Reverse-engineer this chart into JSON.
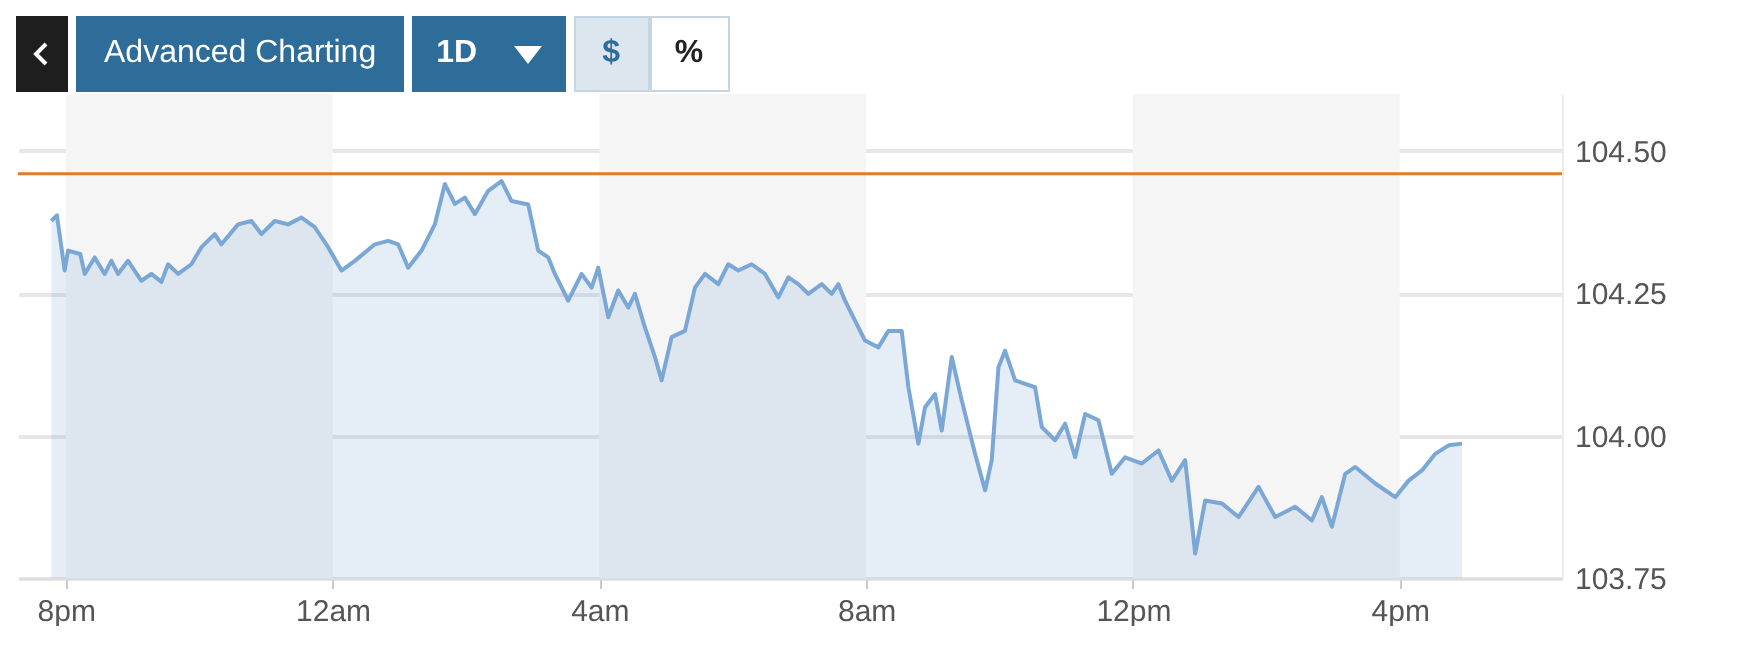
{
  "chart_data": {
    "type": "area",
    "annotations": [
      "Advanced Charting",
      "1D",
      "$",
      "%"
    ],
    "xlim": [
      "--01-01T19:17",
      "--01-02T18:26"
    ],
    "xticks": [
      {
        "value": "--01-01T20:00",
        "label": "8pm"
      },
      {
        "value": "--01-02T00:00",
        "label": "12am"
      },
      {
        "value": "--01-02T04:00",
        "label": "4am"
      },
      {
        "value": "--01-02T08:00",
        "label": "8am"
      },
      {
        "value": "--01-02T12:00",
        "label": "12pm"
      },
      {
        "value": "--01-02T16:00",
        "label": "4pm"
      }
    ],
    "ylim": [
      103.75,
      104.6
    ],
    "yticks": [
      {
        "value": 103.75,
        "label": "103.75"
      },
      {
        "value": 104,
        "label": "104.00"
      },
      {
        "value": 104.25,
        "label": "104.25"
      },
      {
        "value": 104.5,
        "label": "104.50"
      }
    ],
    "grid": "y",
    "bands": [
      {
        "axis": "x",
        "from": "--01-01T20:00",
        "to": "--01-02T00:00",
        "color": "#f5f5f5"
      },
      {
        "axis": "x",
        "from": "--01-02T04:00",
        "to": "--01-02T08:00",
        "color": "#f5f5f5"
      },
      {
        "axis": "x",
        "from": "--01-02T12:00",
        "to": "--01-02T16:00",
        "color": "#f5f5f5"
      }
    ],
    "ref_lines": [
      {
        "axis": "y",
        "value": 104.46,
        "color": "#e07b2a"
      }
    ],
    "series": [
      {
        "color": "#7ba7d6",
        "x": [
          "--01-01T19:47",
          "--01-01T19:52",
          "--01-01T19:59",
          "--01-01T20:02",
          "--01-01T20:13",
          "--01-01T20:17",
          "--01-01T20:26",
          "--01-01T20:35",
          "--01-01T20:41",
          "--01-01T20:47",
          "--01-01T20:56",
          "--01-01T21:08",
          "--01-01T21:17",
          "--01-01T21:26",
          "--01-01T21:32",
          "--01-01T21:41",
          "--01-01T21:53",
          "--01-01T22:02",
          "--01-01T22:14",
          "--01-01T22:20",
          "--01-01T22:35",
          "--01-01T22:47",
          "--01-01T22:56",
          "--01-01T23:08",
          "--01-01T23:20",
          "--01-01T23:32",
          "--01-01T23:44",
          "--01-01T23:56",
          "--01-02T00:08",
          "--01-02T00:20",
          "--01-02T00:38",
          "--01-02T00:50",
          "--01-02T00:59",
          "--01-02T01:08",
          "--01-02T01:20",
          "--01-02T01:32",
          "--01-02T01:41",
          "--01-02T01:50",
          "--01-02T01:59",
          "--01-02T02:08",
          "--01-02T02:20",
          "--01-02T02:32",
          "--01-02T02:41",
          "--01-02T02:56",
          "--01-02T03:05",
          "--01-02T03:14",
          "--01-02T03:20",
          "--01-02T03:32",
          "--01-02T03:44",
          "--01-02T03:53",
          "--01-02T03:59",
          "--01-02T04:08",
          "--01-02T04:17",
          "--01-02T04:26",
          "--01-02T04:32",
          "--01-02T04:41",
          "--01-02T04:50",
          "--01-02T04:56",
          "--01-02T05:05",
          "--01-02T05:17",
          "--01-02T05:26",
          "--01-02T05:35",
          "--01-02T05:47",
          "--01-02T05:56",
          "--01-02T06:05",
          "--01-02T06:17",
          "--01-02T06:29",
          "--01-02T06:41",
          "--01-02T06:50",
          "--01-02T06:59",
          "--01-02T07:08",
          "--01-02T07:20",
          "--01-02T07:29",
          "--01-02T07:35",
          "--01-02T07:41",
          "--01-02T07:50",
          "--01-02T07:59",
          "--01-02T08:11",
          "--01-02T08:20",
          "--01-02T08:32",
          "--01-02T08:38",
          "--01-02T08:47",
          "--01-02T08:53",
          "--01-02T09:02",
          "--01-02T09:08",
          "--01-02T09:17",
          "--01-02T09:26",
          "--01-02T09:38",
          "--01-02T09:47",
          "--01-02T09:53",
          "--01-02T09:59",
          "--01-02T10:05",
          "--01-02T10:14",
          "--01-02T10:23",
          "--01-02T10:32",
          "--01-02T10:38",
          "--01-02T10:50",
          "--01-02T10:59",
          "--01-02T11:08",
          "--01-02T11:17",
          "--01-02T11:29",
          "--01-02T11:41",
          "--01-02T11:53",
          "--01-02T12:08",
          "--01-02T12:23",
          "--01-02T12:35",
          "--01-02T12:47",
          "--01-02T12:56",
          "--01-02T13:05",
          "--01-02T13:20",
          "--01-02T13:35",
          "--01-02T13:53",
          "--01-02T14:08",
          "--01-02T14:26",
          "--01-02T14:41",
          "--01-02T14:50",
          "--01-02T14:59",
          "--01-02T15:11",
          "--01-02T15:20",
          "--01-02T15:38",
          "--01-02T15:56",
          "--01-02T16:08",
          "--01-02T16:20",
          "--01-02T16:32",
          "--01-02T16:44",
          "--01-02T16:56"
        ],
        "values": [
          104.377,
          104.387,
          104.29,
          104.325,
          104.319,
          104.284,
          104.313,
          104.284,
          104.307,
          104.284,
          104.307,
          104.272,
          104.284,
          104.27,
          104.301,
          104.284,
          104.301,
          104.331,
          104.354,
          104.336,
          104.371,
          104.377,
          104.354,
          104.377,
          104.371,
          104.383,
          104.366,
          104.331,
          104.29,
          104.307,
          104.336,
          104.342,
          104.336,
          104.295,
          104.325,
          104.371,
          104.442,
          104.407,
          104.418,
          104.389,
          104.43,
          104.447,
          104.412,
          104.406,
          104.325,
          104.313,
          104.284,
          104.237,
          104.284,
          104.26,
          104.295,
          104.208,
          104.255,
          104.225,
          104.249,
          104.19,
          104.138,
          104.097,
          104.173,
          104.184,
          104.26,
          104.284,
          104.266,
          104.301,
          104.29,
          104.301,
          104.284,
          104.243,
          104.278,
          104.266,
          104.249,
          104.266,
          104.249,
          104.266,
          104.237,
          104.202,
          104.167,
          104.155,
          104.184,
          104.184,
          104.085,
          103.986,
          104.05,
          104.073,
          104.009,
          104.138,
          104.062,
          103.968,
          103.904,
          103.957,
          104.12,
          104.149,
          104.097,
          104.091,
          104.085,
          104.015,
          103.992,
          104.021,
          103.962,
          104.038,
          104.027,
          103.933,
          103.962,
          103.951,
          103.974,
          103.921,
          103.957,
          103.793,
          103.886,
          103.881,
          103.857,
          103.91,
          103.857,
          103.875,
          103.851,
          103.892,
          103.84,
          103.933,
          103.945,
          103.916,
          103.892,
          103.921,
          103.939,
          103.968,
          103.983,
          103.986
        ]
      }
    ]
  }
}
